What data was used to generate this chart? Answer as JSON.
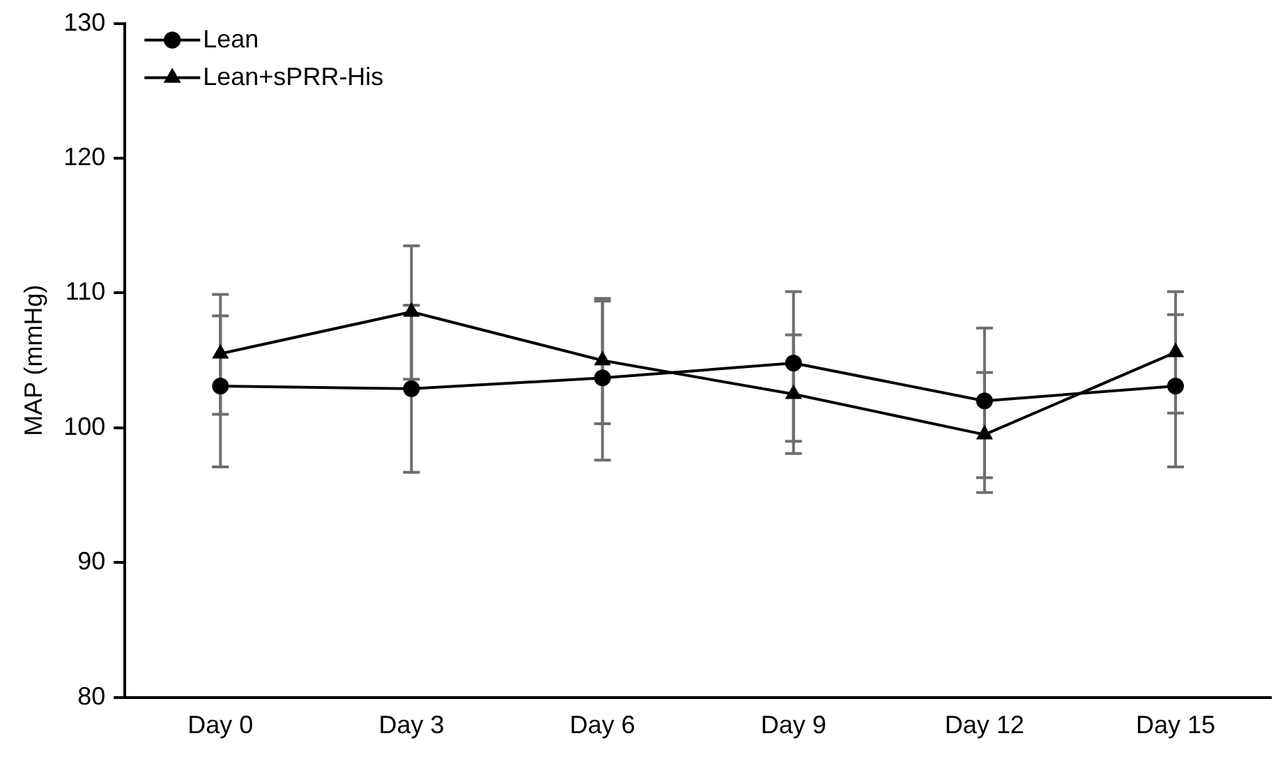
{
  "chart_data": {
    "type": "line",
    "ylabel": "MAP (mmHg)",
    "categories": [
      "Day 0",
      "Day 3",
      "Day 6",
      "Day 9",
      "Day 12",
      "Day 15"
    ],
    "series": [
      {
        "name": "Lean",
        "color": "#000000",
        "marker": "circle",
        "values": [
          103.1,
          102.9,
          103.7,
          104.8,
          102.0,
          103.1
        ],
        "errors": [
          [
            97.1,
            108.3
          ],
          [
            96.7,
            109.1
          ],
          [
            97.6,
            109.6
          ],
          [
            99.0,
            110.1
          ],
          [
            96.3,
            107.4
          ],
          [
            97.1,
            108.4
          ]
        ]
      },
      {
        "name": "Lean+sPRR-His",
        "color": "#000000",
        "marker": "triangle",
        "values": [
          105.5,
          108.6,
          105.0,
          102.5,
          99.5,
          105.6
        ],
        "errors": [
          [
            101.0,
            109.9
          ],
          [
            103.6,
            113.5
          ],
          [
            100.3,
            109.4
          ],
          [
            98.1,
            106.9
          ],
          [
            95.2,
            104.1
          ],
          [
            101.1,
            110.1
          ]
        ]
      }
    ],
    "ylim": [
      80,
      130
    ],
    "yticks": [
      80,
      90,
      100,
      110,
      120,
      130
    ],
    "grid": false,
    "legend": "top left",
    "line_style": "solid"
  }
}
